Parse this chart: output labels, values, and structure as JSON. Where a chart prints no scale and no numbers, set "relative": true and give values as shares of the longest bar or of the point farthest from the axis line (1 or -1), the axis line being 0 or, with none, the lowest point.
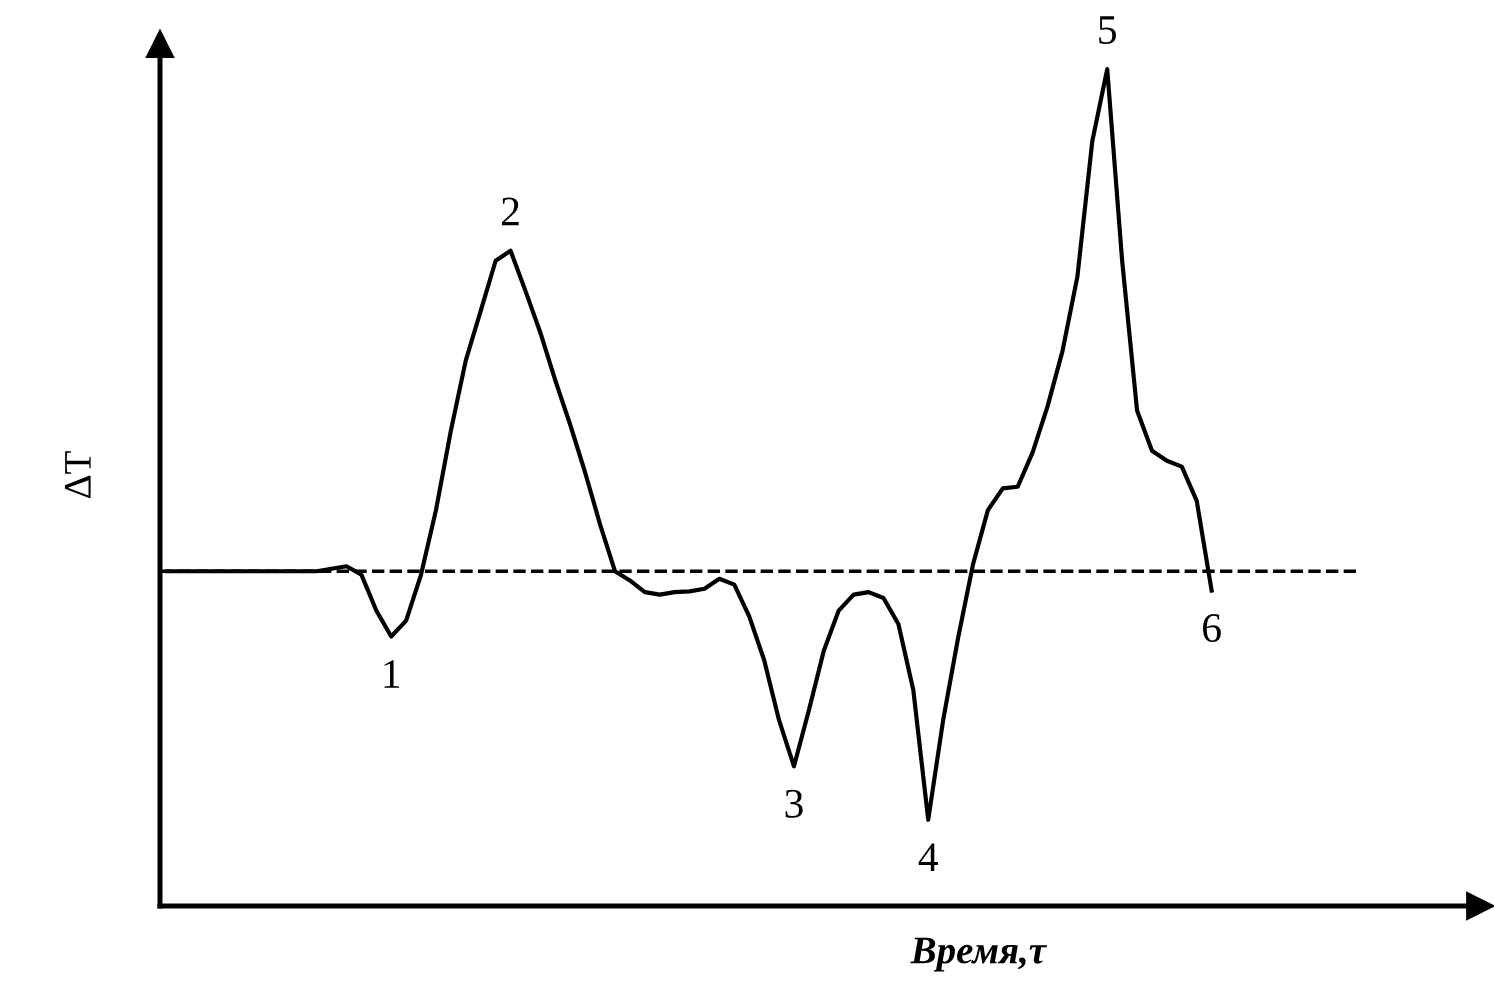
{
  "chart_data": {
    "type": "line",
    "relative": true,
    "xlabel": "Время,τ",
    "ylabel": "ΔT",
    "color": "#000000",
    "line_style": "solid",
    "categories": [
      null,
      null,
      null,
      null,
      null,
      null,
      null,
      null,
      null,
      null,
      null,
      null,
      null,
      null,
      null,
      null,
      null,
      null,
      null,
      null,
      null,
      null,
      null,
      null,
      null,
      null,
      null,
      null,
      null,
      null,
      null,
      null,
      null,
      null,
      null,
      null,
      null,
      null,
      null,
      null,
      null,
      null,
      null,
      null,
      null,
      null,
      null,
      null,
      null,
      null,
      null,
      null,
      null,
      null,
      null,
      null,
      null,
      null,
      null,
      null,
      null,
      null,
      null,
      null,
      null,
      null,
      null,
      null,
      null,
      null,
      null
    ],
    "values": [
      0.4,
      0.4,
      0.4,
      0.4,
      0.4,
      0.4,
      0.4,
      0.4,
      0.4,
      0.4,
      0.4,
      0.403,
      0.406,
      0.396,
      0.353,
      0.322,
      0.341,
      0.396,
      0.473,
      0.568,
      0.652,
      0.711,
      0.771,
      0.783,
      0.735,
      0.685,
      0.628,
      0.575,
      0.518,
      0.456,
      0.4,
      0.389,
      0.375,
      0.372,
      0.375,
      0.376,
      0.379,
      0.391,
      0.384,
      0.346,
      0.294,
      0.222,
      0.167,
      0.234,
      0.305,
      0.353,
      0.372,
      0.375,
      0.368,
      0.337,
      0.258,
      0.103,
      0.222,
      0.32,
      0.408,
      0.473,
      0.499,
      0.501,
      0.542,
      0.597,
      0.663,
      0.752,
      0.914,
      1,
      0.771,
      0.592,
      0.544,
      0.532,
      0.525,
      0.484,
      0.377
    ],
    "ref_lines": [
      {
        "axis": "y",
        "value": 0.4,
        "line_style": "dashed",
        "color": "#000000"
      }
    ],
    "annotations": [
      {
        "text": "1",
        "y": 0.322
      },
      {
        "text": "2",
        "y": 0.783
      },
      {
        "text": "3",
        "y": 0.167
      },
      {
        "text": "4",
        "y": 0.103
      },
      {
        "text": "5",
        "y": 1
      },
      {
        "text": "6",
        "y": 0.377
      }
    ]
  }
}
